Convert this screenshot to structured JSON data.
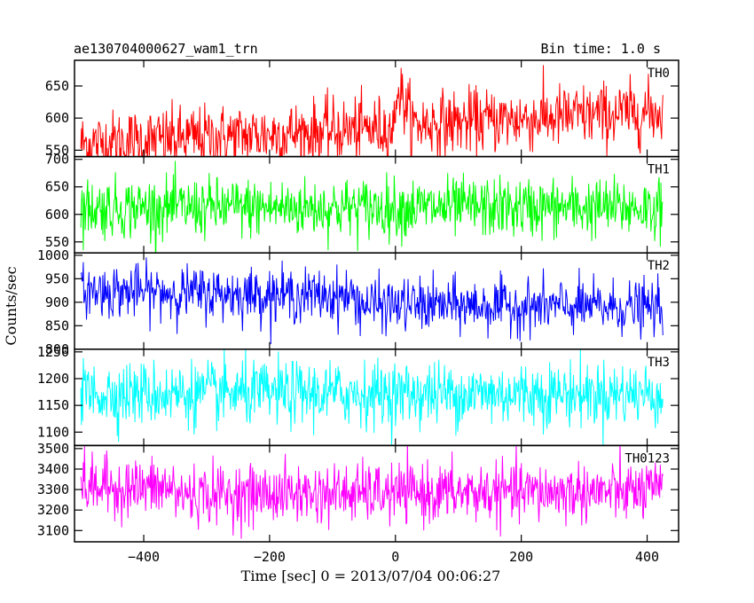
{
  "chart_data": {
    "type": "line",
    "title": "ae130704000627_wam1_trn",
    "subtitle": "Bin time: 1.0 s",
    "xlabel": "Time [sec] 0 = 2013/07/04 00:06:27",
    "ylabel": "Counts/sec",
    "xlim": [
      -510,
      450
    ],
    "xticks": [
      -400,
      -200,
      0,
      200,
      400
    ],
    "x_start": -500,
    "x_end": 425,
    "x_step": 1,
    "grid": false,
    "panels": [
      {
        "name": "TH0",
        "color": "#ff0000",
        "ylim": [
          540,
          690
        ],
        "yticks": [
          550,
          600,
          650
        ],
        "segments": [
          {
            "x0": -500,
            "x1": 0,
            "mean_start": 560,
            "mean_end": 585
          },
          {
            "x0": 0,
            "x1": 25,
            "mean_start": 655,
            "mean_end": 600
          },
          {
            "x0": 25,
            "x1": 425,
            "mean_start": 590,
            "mean_end": 610
          }
        ],
        "noise_sd": 25
      },
      {
        "name": "TH1",
        "color": "#00ff00",
        "ylim": [
          530,
          705
        ],
        "yticks": [
          550,
          600,
          650,
          700
        ],
        "segments": [
          {
            "x0": -500,
            "x1": 425,
            "mean_start": 612,
            "mean_end": 612
          }
        ],
        "noise_sd": 27
      },
      {
        "name": "TH2",
        "color": "#0000ff",
        "ylim": [
          800,
          1005
        ],
        "yticks": [
          800,
          850,
          900,
          950,
          1000
        ],
        "segments": [
          {
            "x0": -500,
            "x1": -60,
            "mean_start": 925,
            "mean_end": 912
          },
          {
            "x0": -60,
            "x1": 425,
            "mean_start": 895,
            "mean_end": 888
          }
        ],
        "noise_sd": 28
      },
      {
        "name": "TH3",
        "color": "#00ffff",
        "ylim": [
          1075,
          1255
        ],
        "yticks": [
          1100,
          1150,
          1200,
          1250
        ],
        "segments": [
          {
            "x0": -500,
            "x1": 425,
            "mean_start": 1172,
            "mean_end": 1172
          }
        ],
        "noise_sd": 30
      },
      {
        "name": "TH0123",
        "color": "#ff00ff",
        "ylim": [
          3045,
          3515
        ],
        "yticks": [
          3100,
          3200,
          3300,
          3400,
          3500
        ],
        "segments": [
          {
            "x0": -500,
            "x1": -350,
            "mean_start": 3315,
            "mean_end": 3305
          },
          {
            "x0": -350,
            "x1": 425,
            "mean_start": 3275,
            "mean_end": 3290
          }
        ],
        "noise_sd": 72
      }
    ]
  }
}
